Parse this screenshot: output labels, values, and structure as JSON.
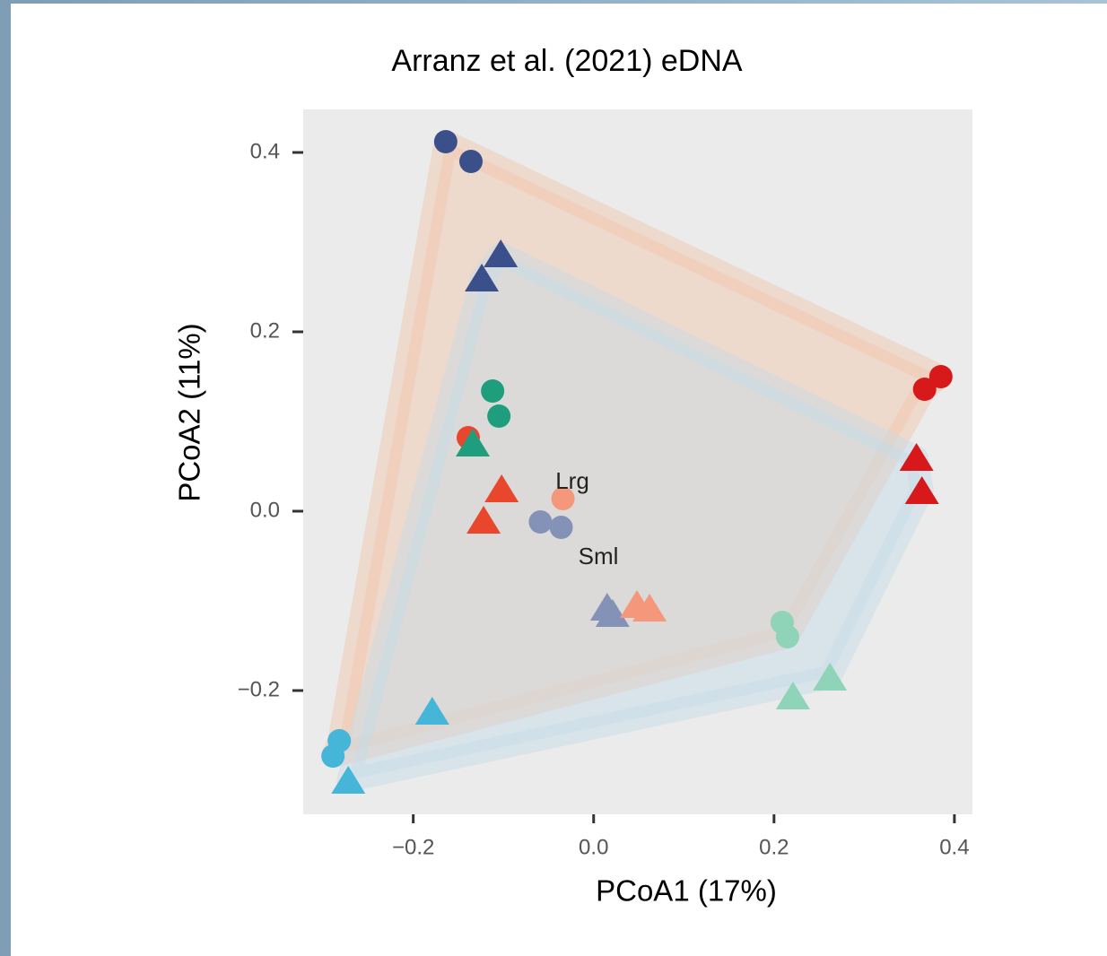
{
  "chart_data": {
    "type": "scatter",
    "title": "Arranz et al. (2021) eDNA",
    "x_label": "PCoA1 (17%)",
    "y_label": "PCoA2 (11%)",
    "xlim": [
      -0.322,
      0.42
    ],
    "ylim": [
      -0.338,
      0.448
    ],
    "xticks": [
      {
        "value": -0.2,
        "label": "−0.2"
      },
      {
        "value": 0,
        "label": "0.0"
      },
      0.2,
      0.4
    ],
    "yticks": [
      {
        "value": -0.2,
        "label": "−0.2"
      },
      {
        "value": 0,
        "label": "0.0"
      },
      0.2,
      0.4
    ],
    "annotations": [
      "Lrg",
      "Sml"
    ],
    "hulls": [
      {
        "color": "#f2c4a8",
        "x": [
          -0.164,
          0.385,
          0.367,
          0.215,
          -0.289,
          -0.282
        ],
        "y": [
          0.412,
          0.15,
          0.136,
          -0.14,
          -0.273,
          -0.256
        ]
      },
      {
        "color": "#c4dbe9",
        "x": [
          -0.103,
          0.358,
          0.364,
          0.262,
          -0.272,
          -0.124
        ],
        "y": [
          0.287,
          0.06,
          0.023,
          -0.185,
          -0.3,
          0.26
        ]
      }
    ],
    "series": [
      {
        "color": "#3b4f8a",
        "marker": "circle",
        "x": [
          -0.164,
          -0.136
        ],
        "y": [
          0.412,
          0.39
        ]
      },
      {
        "color": "#1f9e7e",
        "marker": "circle",
        "x": [
          -0.112,
          -0.105
        ],
        "y": [
          0.134,
          0.106
        ]
      },
      {
        "color": "#e8472e",
        "marker": "circle",
        "x": [
          -0.139
        ],
        "y": [
          0.082
        ]
      },
      {
        "color": "#f4977a",
        "marker": "circle",
        "x": [
          -0.034
        ],
        "y": [
          0.014
        ]
      },
      {
        "color": "#8592b8",
        "marker": "circle",
        "x": [
          -0.059,
          -0.036
        ],
        "y": [
          -0.012,
          -0.018
        ]
      },
      {
        "color": "#8fd3b8",
        "marker": "circle",
        "x": [
          0.209,
          0.215
        ],
        "y": [
          -0.124,
          -0.14
        ]
      },
      {
        "color": "#d7191c",
        "marker": "circle",
        "x": [
          0.367,
          0.385
        ],
        "y": [
          0.136,
          0.15
        ]
      },
      {
        "color": "#45b5d8",
        "marker": "circle",
        "x": [
          -0.282,
          -0.289
        ],
        "y": [
          -0.256,
          -0.273
        ]
      },
      {
        "color": "#3b4f8a",
        "marker": "triangle",
        "x": [
          -0.103,
          -0.124
        ],
        "y": [
          0.287,
          0.26
        ]
      },
      {
        "color": "#1f9e7e",
        "marker": "triangle",
        "x": [
          -0.134
        ],
        "y": [
          0.076
        ]
      },
      {
        "color": "#e8472e",
        "marker": "triangle",
        "x": [
          -0.102,
          -0.122
        ],
        "y": [
          0.025,
          -0.01
        ]
      },
      {
        "color": "#8592b8",
        "marker": "triangle",
        "x": [
          0.015,
          0.021
        ],
        "y": [
          -0.107,
          -0.114
        ]
      },
      {
        "color": "#f4977a",
        "marker": "triangle",
        "x": [
          0.048,
          0.062
        ],
        "y": [
          -0.104,
          -0.108
        ]
      },
      {
        "color": "#8fd3b8",
        "marker": "triangle",
        "x": [
          0.262,
          0.221
        ],
        "y": [
          -0.185,
          -0.206
        ]
      },
      {
        "color": "#d7191c",
        "marker": "triangle",
        "x": [
          0.358,
          0.364
        ],
        "y": [
          0.06,
          0.023
        ]
      },
      {
        "color": "#45b5d8",
        "marker": "triangle",
        "x": [
          -0.179,
          -0.272
        ],
        "y": [
          -0.223,
          -0.3
        ]
      }
    ]
  }
}
